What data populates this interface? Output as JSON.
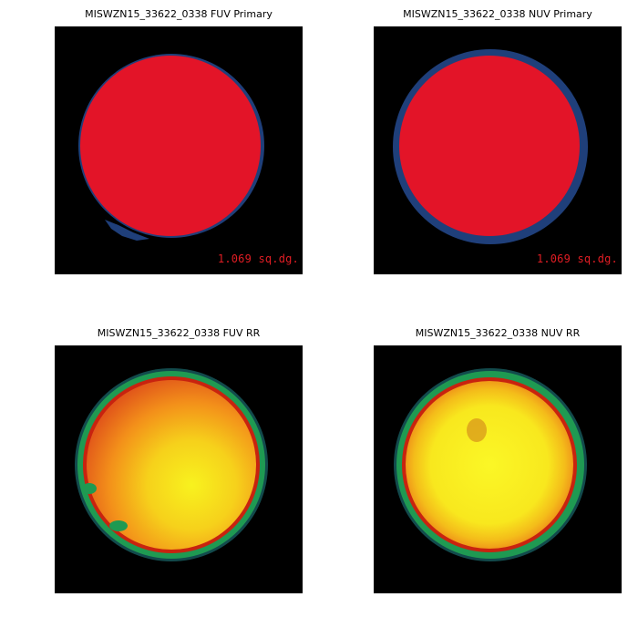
{
  "panels": [
    {
      "id": "fuv-primary",
      "title": "MISWZN15_33622_0338 FUV Primary",
      "area_label": "1.069 sq.dg."
    },
    {
      "id": "nuv-primary",
      "title": "MISWZN15_33622_0338 NUV Primary",
      "area_label": "1.069 sq.dg."
    },
    {
      "id": "fuv-rr",
      "title": "MISWZN15_33622_0338 FUV RR"
    },
    {
      "id": "nuv-rr",
      "title": "MISWZN15_33622_0338 NUV RR"
    }
  ],
  "colors": {
    "background": "#000000",
    "primary_fill": "#e31428",
    "primary_ring": "#1f3f7a",
    "label": "#e01d24",
    "rr_yellow": "#f6ef1c",
    "rr_orange": "#f3901a",
    "rr_red": "#c8230f",
    "rr_green": "#1f9a52"
  }
}
